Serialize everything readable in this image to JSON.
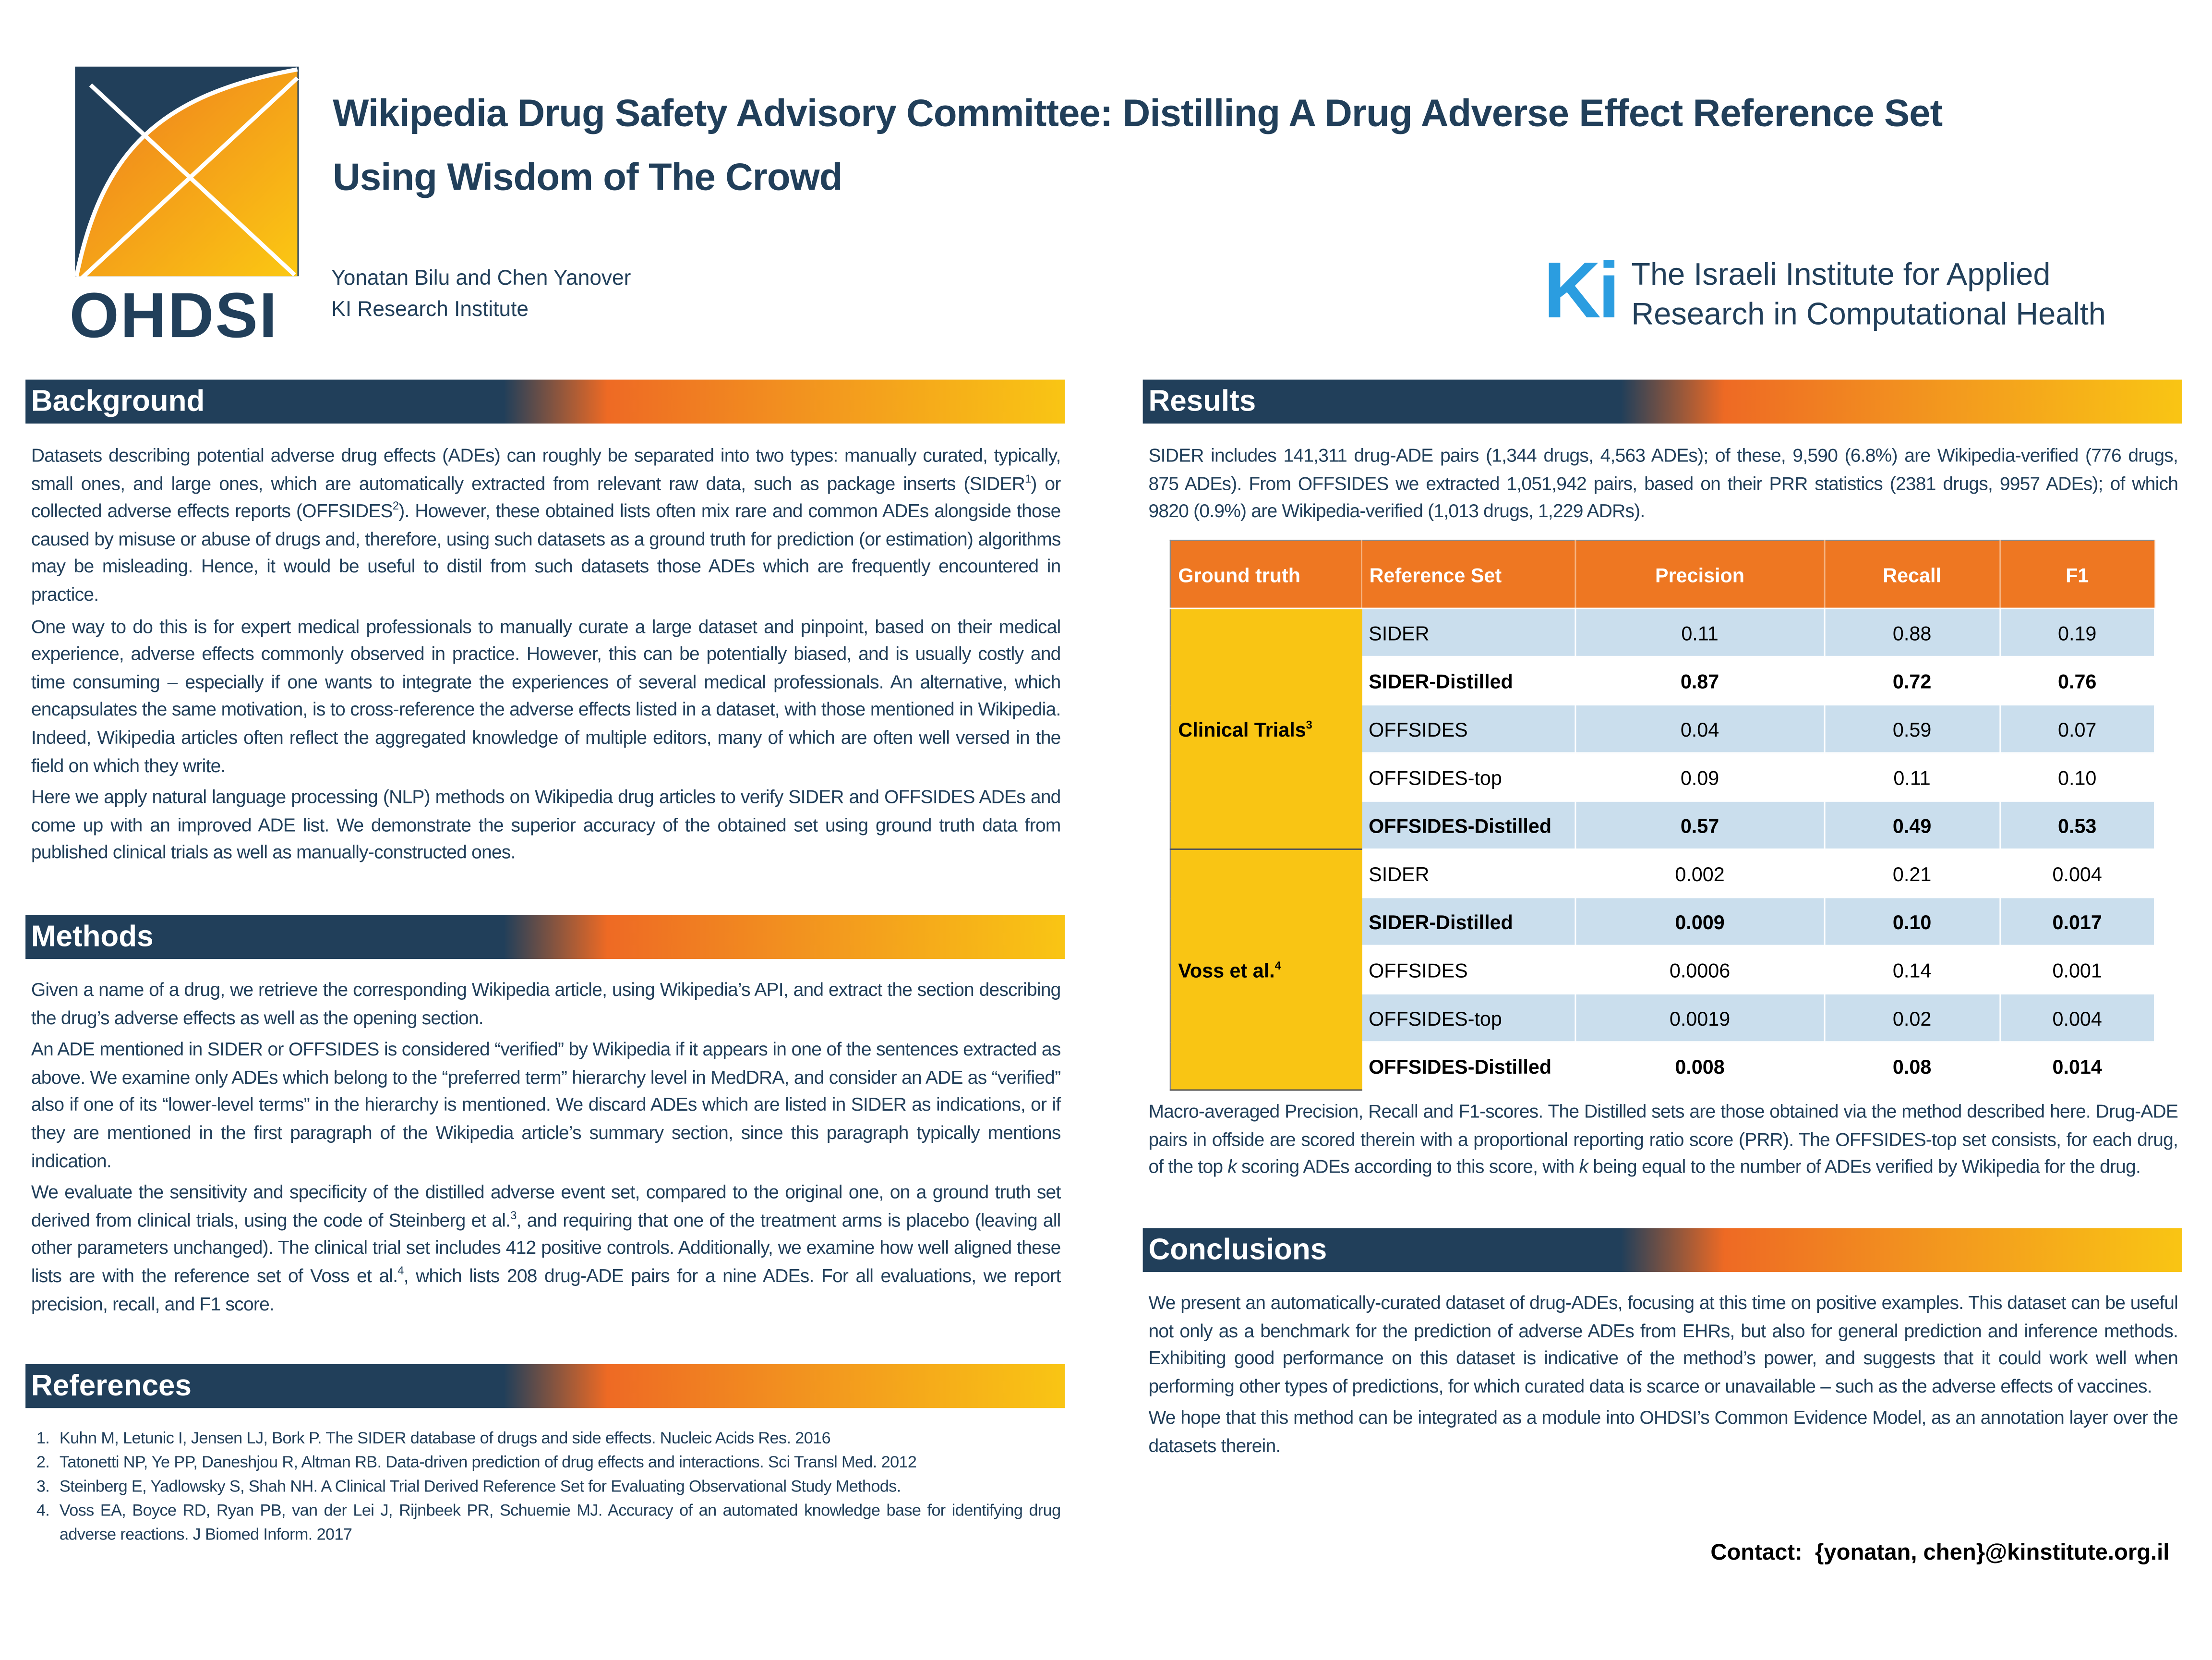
{
  "header": {
    "title_line1": "Wikipedia Drug Safety Advisory Committee: Distilling A Drug Adverse Effect Reference Set",
    "title_line2": "Using Wisdom of The Crowd",
    "authors": "Yonatan Bilu and Chen Yanover",
    "affiliation": "KI Research Institute",
    "ohdsi_logo_text": "OHDSI",
    "ki_logo_mark": "Ki",
    "ki_line1": "The Israeli Institute for Applied",
    "ki_line2": "Research in Computational Health"
  },
  "colors": {
    "navy": "#213f5a",
    "orange": "#ee7722",
    "yellow": "#f9c514",
    "light_blue": "#cadeed"
  },
  "background": {
    "heading": "Background",
    "p1a": "Datasets describing potential adverse drug effects (ADEs) can roughly be separated into two types: manually curated, typically, small ones, and large ones, which are automatically extracted from relevant raw data, such as package inserts (SIDER",
    "p1s1": "1",
    "p1b": ") or collected adverse effects reports (OFFSIDES",
    "p1s2": "2",
    "p1c": "). However, these obtained lists often mix rare and common ADEs alongside those caused by misuse or abuse of drugs and, therefore, using such datasets as a ground truth for prediction (or estimation) algorithms may be misleading. Hence, it would be useful to distil from such datasets those ADEs which are frequently encountered in practice.",
    "p2": "One way to do this is for expert medical professionals to manually curate a large dataset and pinpoint, based on their medical experience, adverse effects commonly observed in practice. However, this can be potentially biased, and is usually costly and time consuming – especially if one wants to integrate the experiences of several medical professionals. An alternative, which encapsulates the same motivation, is to cross-reference the adverse effects listed in a dataset, with those mentioned in Wikipedia. Indeed, Wikipedia articles often reflect the aggregated knowledge of multiple editors, many of which are often well versed in the field on which they write.",
    "p3": "Here we apply natural language processing (NLP) methods on Wikipedia drug articles to verify SIDER and OFFSIDES ADEs and come up with an improved ADE list. We demonstrate the superior accuracy of the obtained set using ground truth data from published clinical trials as well as manually-constructed ones."
  },
  "methods": {
    "heading": "Methods",
    "p1": "Given a name of a drug, we retrieve the corresponding Wikipedia article, using Wikipedia’s API, and extract the section describing the drug’s adverse effects as well as the opening section.",
    "p2": "An ADE mentioned in SIDER or OFFSIDES is considered “verified” by Wikipedia if it appears in one of the sentences extracted as above. We examine only ADEs which belong to the “preferred term” hierarchy level in MedDRA, and consider an ADE as “verified” also if one of its “lower-level terms” in the hierarchy is mentioned. We discard ADEs which are listed in SIDER as indications, or if they are mentioned in the first paragraph of the Wikipedia article’s summary section, since this paragraph typically mentions indication.",
    "p3a": "We evaluate the sensitivity and specificity of the distilled adverse event set, compared to the original one, on a ground truth set derived from clinical trials, using the code of Steinberg et al.",
    "p3s1": "3",
    "p3b": ", and requiring that one of the treatment arms is placebo (leaving all other parameters unchanged). The clinical trial set includes 412 positive controls. Additionally, we examine how well aligned these lists are with the reference set of Voss et al.",
    "p3s2": "4",
    "p3c": ", which lists 208 drug-ADE pairs for a nine ADEs. For all evaluations, we report precision, recall, and F1 score."
  },
  "references": {
    "heading": "References",
    "items": [
      "Kuhn M, Letunic I, Jensen LJ, Bork P. The SIDER database of drugs and side effects. Nucleic Acids Res. 2016",
      "Tatonetti NP, Ye PP, Daneshjou R, Altman RB. Data-driven prediction of drug effects and interactions. Sci Transl Med. 2012",
      "Steinberg E, Yadlowsky S, Shah NH. A Clinical Trial Derived Reference Set for Evaluating Observational Study Methods.",
      "Voss EA, Boyce RD, Ryan PB, van der Lei J, Rijnbeek PR, Schuemie MJ. Accuracy of an automated knowledge base for identifying drug adverse reactions. J Biomed Inform. 2017"
    ]
  },
  "results": {
    "heading": "Results",
    "intro": "SIDER includes 141,311 drug-ADE pairs (1,344 drugs, 4,563 ADEs); of these, 9,590 (6.8%) are Wikipedia-verified (776 drugs, 875 ADEs). From OFFSIDES we extracted 1,051,942 pairs, based on their PRR statistics (2381 drugs, 9957 ADEs); of which 9820 (0.9%) are Wikipedia-verified (1,013 drugs, 1,229 ADRs).",
    "table": {
      "headers": [
        "Ground truth",
        "Reference Set",
        "Precision",
        "Recall",
        "F1"
      ],
      "groups": [
        {
          "name": "Clinical Trials",
          "sup": "3",
          "rows": [
            {
              "set": "SIDER",
              "precision": "0.11",
              "recall": "0.88",
              "f1": "0.19",
              "bold": false
            },
            {
              "set": "SIDER-Distilled",
              "precision": "0.87",
              "recall": "0.72",
              "f1": "0.76",
              "bold": true
            },
            {
              "set": "OFFSIDES",
              "precision": "0.04",
              "recall": "0.59",
              "f1": "0.07",
              "bold": false
            },
            {
              "set": "OFFSIDES-top",
              "precision": "0.09",
              "recall": "0.11",
              "f1": "0.10",
              "bold": false
            },
            {
              "set": "OFFSIDES-Distilled",
              "precision": "0.57",
              "recall": "0.49",
              "f1": "0.53",
              "bold": true
            }
          ]
        },
        {
          "name": "Voss et al.",
          "sup": "4",
          "rows": [
            {
              "set": "SIDER",
              "precision": "0.002",
              "recall": "0.21",
              "f1": "0.004",
              "bold": false
            },
            {
              "set": "SIDER-Distilled",
              "precision": "0.009",
              "recall": "0.10",
              "f1": "0.017",
              "bold": true
            },
            {
              "set": "OFFSIDES",
              "precision": "0.0006",
              "recall": "0.14",
              "f1": "0.001",
              "bold": false
            },
            {
              "set": "OFFSIDES-top",
              "precision": "0.0019",
              "recall": "0.02",
              "f1": "0.004",
              "bold": false
            },
            {
              "set": "OFFSIDES-Distilled",
              "precision": "0.008",
              "recall": "0.08",
              "f1": "0.014",
              "bold": true
            }
          ]
        }
      ]
    },
    "caption_a": "Macro-averaged Precision, Recall and F1-scores. The Distilled sets are those obtained via the method described here. Drug-ADE pairs in offside are scored therein with a proportional reporting ratio score  (PRR). The OFFSIDES-top set consists, for each drug, of the top ",
    "caption_k1": "k",
    "caption_b": " scoring ADEs according to this score, with ",
    "caption_k2": "k",
    "caption_c": " being equal to the number of ADEs verified by Wikipedia for the drug."
  },
  "conclusions": {
    "heading": "Conclusions",
    "p1": "We present an automatically-curated dataset of drug-ADEs, focusing at this time on positive examples. This dataset can be useful not only as a benchmark for the prediction of adverse ADEs from EHRs, but also for general prediction and inference methods. Exhibiting good performance on this dataset is indicative of the method’s power, and suggests that it could work well when performing other types of predictions, for which curated data is scarce or unavailable – such as the adverse effects of vaccines.",
    "p2": "We hope that this method can be integrated as a module into OHDSI’s Common Evidence Model, as an annotation layer over the datasets therein."
  },
  "contact": "Contact:  {yonatan, chen}@kinstitute.org.il"
}
